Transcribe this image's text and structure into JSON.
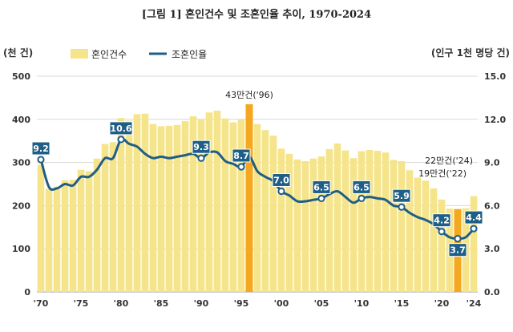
{
  "chart_data": {
    "type": "bar+line",
    "title": "[그림 1] 혼인건수 및 조혼인율 추이, 1970-2024",
    "left_unit": "(천 건)",
    "right_unit": "(인구 1천 명당 건)",
    "legend": {
      "bar": "혼인건수",
      "line": "조혼인율"
    },
    "years": [
      1970,
      1971,
      1972,
      1973,
      1974,
      1975,
      1976,
      1977,
      1978,
      1979,
      1980,
      1981,
      1982,
      1983,
      1984,
      1985,
      1986,
      1987,
      1988,
      1989,
      1990,
      1991,
      1992,
      1993,
      1994,
      1995,
      1996,
      1997,
      1998,
      1999,
      2000,
      2001,
      2002,
      2003,
      2004,
      2005,
      2006,
      2007,
      2008,
      2009,
      2010,
      2011,
      2012,
      2013,
      2014,
      2015,
      2016,
      2017,
      2018,
      2019,
      2020,
      2021,
      2022,
      2023,
      2024
    ],
    "xtick_labels": [
      {
        "year": 1970,
        "label": "'70"
      },
      {
        "year": 1975,
        "label": "'75"
      },
      {
        "year": 1980,
        "label": "'80"
      },
      {
        "year": 1985,
        "label": "'85"
      },
      {
        "year": 1990,
        "label": "'90"
      },
      {
        "year": 1995,
        "label": "'95"
      },
      {
        "year": 2000,
        "label": "'00"
      },
      {
        "year": 2005,
        "label": "'05"
      },
      {
        "year": 2010,
        "label": "'10"
      },
      {
        "year": 2015,
        "label": "'15"
      },
      {
        "year": 2020,
        "label": "'20"
      },
      {
        "year": 2024,
        "label": "'24"
      }
    ],
    "marriages_thousand": [
      295,
      239,
      244,
      259,
      260,
      283,
      280,
      309,
      343,
      347,
      403,
      397,
      412,
      413,
      389,
      384,
      385,
      387,
      396,
      407,
      399,
      416,
      420,
      402,
      393,
      399,
      435,
      389,
      375,
      362,
      332,
      320,
      307,
      303,
      309,
      314,
      331,
      344,
      328,
      310,
      326,
      329,
      327,
      323,
      306,
      303,
      282,
      265,
      258,
      240,
      214,
      193,
      192,
      194,
      222
    ],
    "crude_marriage_rate": [
      9.2,
      7.3,
      7.2,
      7.5,
      7.4,
      8.0,
      8.0,
      8.5,
      9.3,
      9.3,
      10.6,
      10.3,
      10.1,
      9.6,
      9.3,
      9.4,
      9.3,
      9.4,
      9.5,
      9.6,
      9.3,
      9.7,
      9.7,
      9.1,
      8.9,
      8.7,
      9.4,
      8.4,
      8.0,
      7.7,
      7.0,
      6.7,
      6.3,
      6.3,
      6.4,
      6.5,
      6.8,
      7.0,
      6.6,
      6.2,
      6.5,
      6.6,
      6.5,
      6.4,
      6.0,
      5.9,
      5.5,
      5.2,
      5.0,
      4.7,
      4.2,
      3.8,
      3.7,
      3.8,
      4.4
    ],
    "highlighted_bars": [
      1996,
      2022
    ],
    "data_labels": [
      {
        "year": 1970,
        "text": "9.2"
      },
      {
        "year": 1980,
        "text": "10.6"
      },
      {
        "year": 1990,
        "text": "9.3"
      },
      {
        "year": 1995,
        "text": "8.7"
      },
      {
        "year": 2000,
        "text": "7.0"
      },
      {
        "year": 2005,
        "text": "6.5"
      },
      {
        "year": 2010,
        "text": "6.5"
      },
      {
        "year": 2015,
        "text": "5.9"
      },
      {
        "year": 2020,
        "text": "4.2"
      },
      {
        "year": 2022,
        "text": "3.7"
      },
      {
        "year": 2024,
        "text": "4.4"
      }
    ],
    "annotations": [
      {
        "year": 1996,
        "text": "43만건('96)"
      },
      {
        "year": 2024,
        "text": "22만건('24)"
      },
      {
        "year": 2022,
        "text": "19만건('22)"
      }
    ],
    "ylim_left": [
      0,
      500
    ],
    "yticks_left": [
      0,
      100,
      200,
      300,
      400,
      500
    ],
    "ylim_right": [
      0.0,
      15.0
    ],
    "yticks_right": [
      "0.0",
      "3.0",
      "6.0",
      "9.0",
      "12.0",
      "15.0"
    ],
    "colors": {
      "bar": "#F5E48A",
      "bar_highlight": "#F4A81F",
      "line": "#1F5E86",
      "label_box": "#1F5E86",
      "grid": "#D9D9D9"
    },
    "legend_position": "top-left",
    "grid": true
  }
}
